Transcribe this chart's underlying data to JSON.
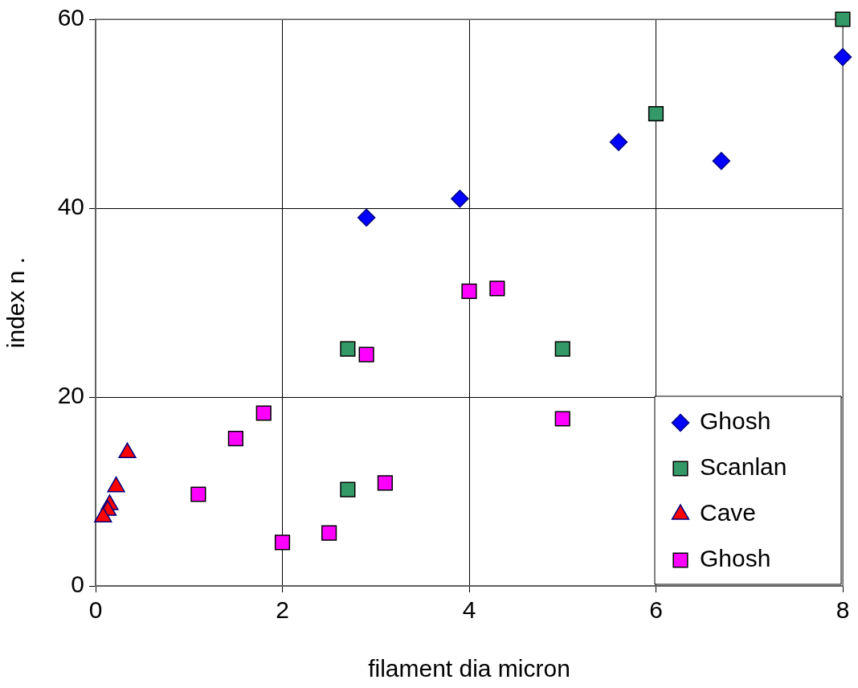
{
  "chart_data": {
    "type": "scatter",
    "xlabel": "filament dia micron",
    "ylabel": "index n .",
    "xlim": [
      0,
      8
    ],
    "xticks": [
      0,
      2,
      4,
      6,
      8
    ],
    "ylim": [
      0,
      60
    ],
    "yticks": [
      0,
      20,
      40,
      60
    ],
    "grid": true,
    "legend": "bottom right",
    "series": [
      {
        "name": "Ghosh",
        "color": "#0000ff",
        "marker": "diamond",
        "x": [
          2.9,
          3.9,
          5.6,
          6.7,
          8.0
        ],
        "values": [
          39,
          41,
          47,
          45,
          56
        ]
      },
      {
        "name": "Scanlan",
        "color": "#339966",
        "marker": "square",
        "x": [
          2.7,
          2.7,
          5.0,
          6.0,
          8.0
        ],
        "values": [
          25.1,
          10.2,
          25.1,
          50,
          60
        ]
      },
      {
        "name": "Cave",
        "color": "#ff0000",
        "marker": "triangle",
        "x": [
          0.34,
          0.22,
          0.15,
          0.13,
          0.08
        ],
        "values": [
          14.1,
          10.5,
          8.6,
          8.0,
          7.3
        ]
      },
      {
        "name": "Ghosh",
        "color": "#ff00ff",
        "marker": "square",
        "x": [
          1.1,
          1.5,
          1.8,
          2.0,
          2.5,
          2.9,
          3.1,
          4.0,
          4.3,
          5.0
        ],
        "values": [
          9.7,
          15.6,
          18.3,
          4.6,
          5.6,
          24.5,
          10.9,
          31.2,
          31.5,
          17.7
        ]
      }
    ]
  }
}
